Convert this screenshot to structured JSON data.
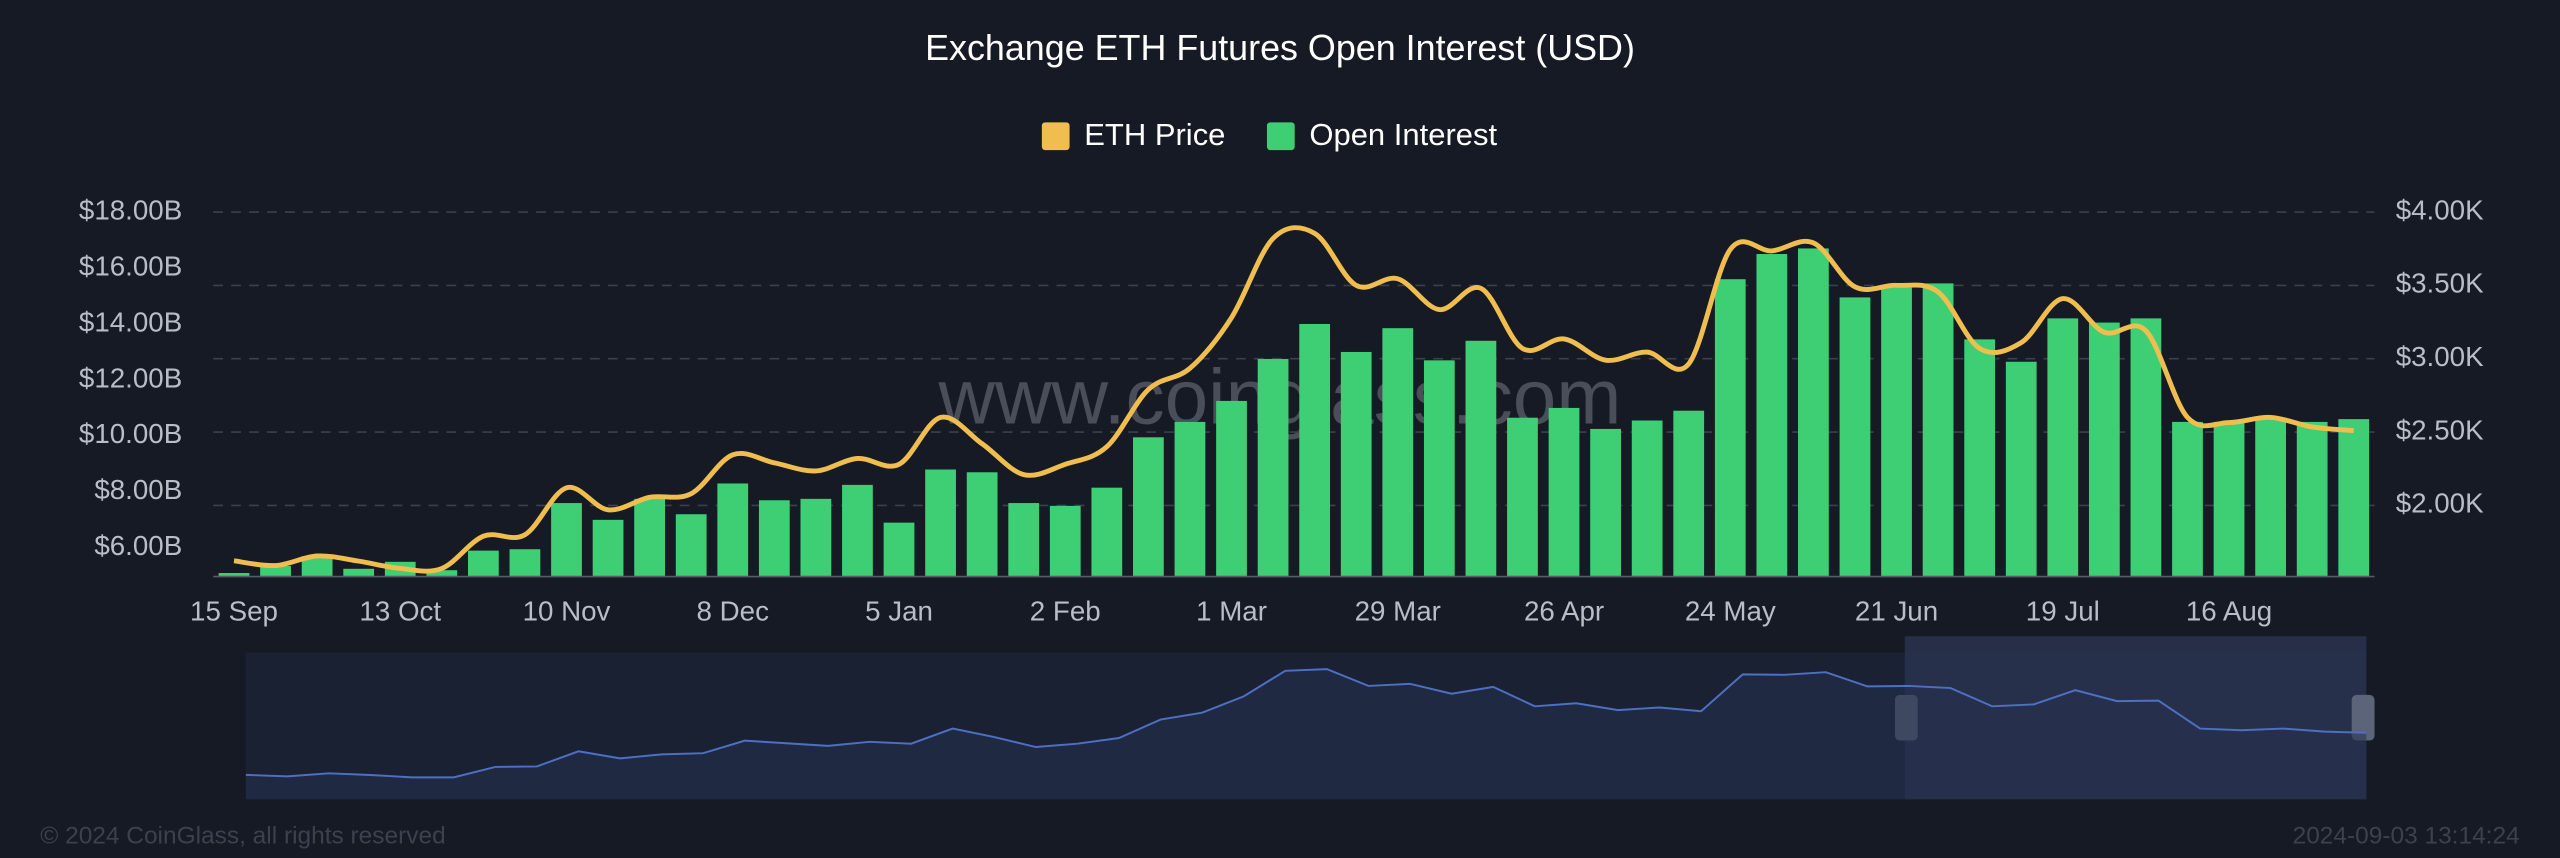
{
  "chart_data": {
    "type": "combo",
    "title": "Exchange ETH Futures Open Interest (USD)",
    "watermark": "www.coinglass.com",
    "legend": "top",
    "grid": "y2",
    "categories": [
      "15 Sep",
      null,
      null,
      null,
      "13 Oct",
      null,
      null,
      null,
      "10 Nov",
      null,
      null,
      null,
      "8 Dec",
      null,
      null,
      null,
      "5 Jan",
      null,
      null,
      null,
      "2 Feb",
      null,
      null,
      null,
      "1 Mar",
      null,
      null,
      null,
      "29 Mar",
      null,
      null,
      null,
      "26 Apr",
      null,
      null,
      null,
      "24 May",
      null,
      null,
      null,
      "21 Jun",
      null,
      null,
      null,
      "19 Jul",
      null,
      null,
      null,
      "16 Aug",
      null,
      null,
      null
    ],
    "series": [
      {
        "name": "ETH Price",
        "type": "line",
        "axis": "y2",
        "color": "#f0bd4f",
        "values": [
          1622,
          1590,
          1655,
          1620,
          1570,
          1570,
          1790,
          1800,
          2120,
          1970,
          2055,
          2080,
          2345,
          2290,
          2235,
          2320,
          2280,
          2600,
          2420,
          2210,
          2280,
          2400,
          2790,
          2935,
          3280,
          3820,
          3855,
          3500,
          3545,
          3335,
          3480,
          3070,
          3135,
          2990,
          3045,
          2965,
          3745,
          3735,
          3790,
          3490,
          3500,
          3455,
          3070,
          3110,
          3410,
          3180,
          3190,
          2600,
          2565,
          2600,
          2535,
          2510
        ]
      },
      {
        "name": "Open Interest",
        "type": "bar",
        "color": "#3ecf74",
        "values": [
          5.1,
          5.35,
          5.7,
          5.25,
          5.5,
          5.2,
          5.9,
          5.95,
          7.6,
          7.0,
          7.75,
          7.2,
          8.3,
          7.7,
          7.75,
          8.25,
          6.9,
          8.8,
          8.7,
          7.6,
          7.5,
          8.15,
          9.95,
          10.5,
          11.25,
          12.75,
          14.0,
          13.0,
          13.85,
          12.7,
          13.4,
          10.65,
          11.0,
          10.25,
          10.55,
          10.9,
          15.6,
          16.5,
          16.7,
          14.95,
          15.3,
          15.45,
          13.45,
          12.65,
          14.2,
          14.05,
          14.2,
          10.5,
          10.5,
          10.6,
          10.5,
          10.6
        ]
      }
    ],
    "ylim": [
      5,
      18
    ],
    "yticks": [
      {
        "value": 6,
        "label": "$6.00B"
      },
      {
        "value": 8,
        "label": "$8.00B"
      },
      {
        "value": 10,
        "label": "$10.00B"
      },
      {
        "value": 12,
        "label": "$12.00B"
      },
      {
        "value": 14,
        "label": "$14.00B"
      },
      {
        "value": 16,
        "label": "$16.00B"
      },
      {
        "value": 18,
        "label": "$18.00B"
      }
    ],
    "y2lim": [
      1520,
      4000
    ],
    "y2ticks": [
      {
        "value": 2000,
        "label": "$2.00K"
      },
      {
        "value": 2500,
        "label": "$2.50K"
      },
      {
        "value": 3000,
        "label": "$3.00K"
      },
      {
        "value": 3500,
        "label": "$3.50K"
      },
      {
        "value": 4000,
        "label": "$4.00K"
      }
    ]
  },
  "footer": {
    "copyright": "© 2024 CoinGlass, all rights reserved",
    "timestamp": "2024-09-03 13:14:24"
  }
}
